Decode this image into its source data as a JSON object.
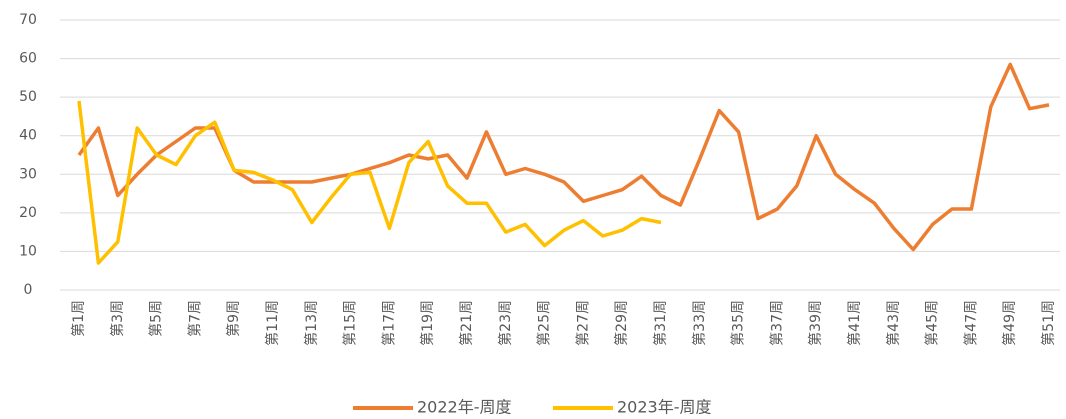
{
  "chart_data": {
    "type": "line",
    "categories": [
      "第1周",
      null,
      "第3周",
      null,
      "第5周",
      null,
      "第7周",
      null,
      "第9周",
      null,
      "第11周",
      null,
      "第13周",
      null,
      "第15周",
      null,
      "第17周",
      null,
      "第19周",
      null,
      "第21周",
      null,
      "第23周",
      null,
      "第25周",
      null,
      "第27周",
      null,
      "第29周",
      null,
      "第31周",
      null,
      "第33周",
      null,
      "第35周",
      null,
      "第37周",
      null,
      "第39周",
      null,
      "第41周",
      null,
      "第43周",
      null,
      "第45周",
      null,
      "第47周",
      null,
      "第49周",
      null,
      "第51周"
    ],
    "series": [
      {
        "name": "2022年-周度",
        "color": "#ed7d31",
        "values": [
          35,
          42,
          24.5,
          30,
          35,
          38.5,
          42,
          42,
          31,
          28,
          28,
          28,
          28,
          29,
          30,
          31.5,
          33,
          35,
          34,
          35,
          29,
          41,
          30,
          31.5,
          30,
          28,
          23,
          24.5,
          26,
          29.5,
          24.5,
          22,
          34,
          46.5,
          41,
          18.5,
          21,
          27,
          40,
          30,
          26,
          22.5,
          16,
          10.5,
          17,
          21,
          21,
          47.5,
          58.5,
          47,
          48
        ]
      },
      {
        "name": "2023年-周度",
        "color": "#ffc000",
        "values": [
          49,
          7,
          12.5,
          42,
          35,
          32.5,
          40,
          43.5,
          31,
          30.5,
          28.5,
          26,
          17.5,
          24,
          30,
          30.5,
          16,
          33,
          38.5,
          27,
          22.5,
          22.5,
          15,
          17,
          11.5,
          15.5,
          18,
          14,
          15.5,
          18.5,
          17.5,
          null,
          null,
          null,
          null,
          null,
          null,
          null,
          null,
          null,
          null,
          null,
          null,
          null,
          null,
          null,
          null,
          null,
          null,
          null,
          null
        ]
      }
    ],
    "ylim": [
      0,
      70
    ],
    "yticks": [
      0,
      10,
      20,
      30,
      40,
      50,
      60,
      70
    ],
    "grid": true,
    "legend": "bottom"
  }
}
